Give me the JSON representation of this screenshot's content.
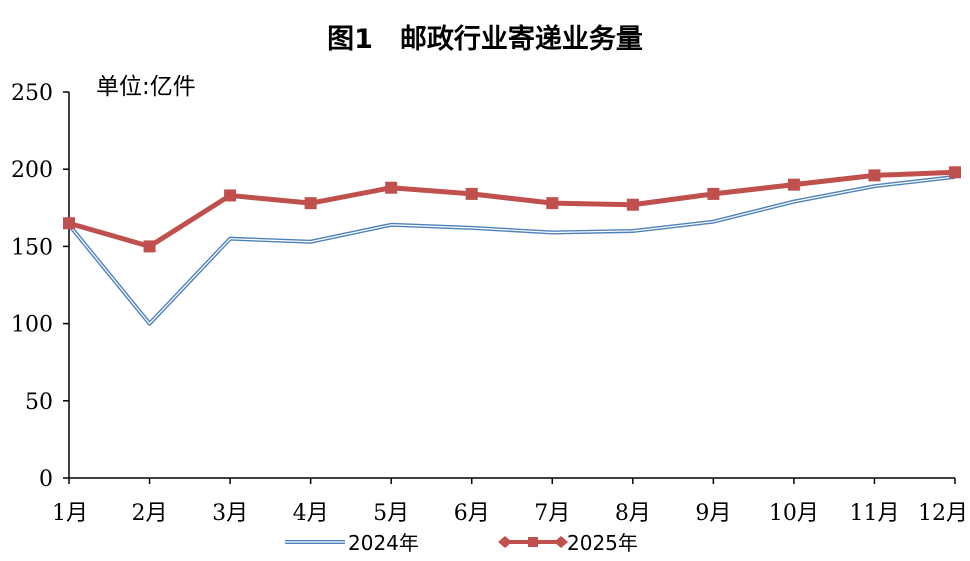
{
  "chart_data": {
    "type": "line",
    "title": "图1　邮政行业寄递业务量",
    "unit_label": "单位:亿件",
    "categories": [
      "1月",
      "2月",
      "3月",
      "4月",
      "5月",
      "6月",
      "7月",
      "8月",
      "9月",
      "10月",
      "11月",
      "12月"
    ],
    "ylim": [
      0,
      250
    ],
    "yticks": [
      "0",
      "50",
      "100",
      "150",
      "200",
      "250"
    ],
    "grid": false,
    "legend_position": "bottom",
    "series": [
      {
        "name": "2024年",
        "color": "#4F81BD",
        "marker": "none",
        "values": [
          164,
          100,
          155,
          153,
          164,
          162,
          159,
          160,
          166,
          179,
          189,
          195
        ]
      },
      {
        "name": "2025年",
        "color": "#C0504D",
        "marker": "square",
        "values": [
          165,
          150,
          183,
          178,
          188,
          184,
          178,
          177,
          184,
          190,
          196,
          198
        ]
      }
    ]
  }
}
